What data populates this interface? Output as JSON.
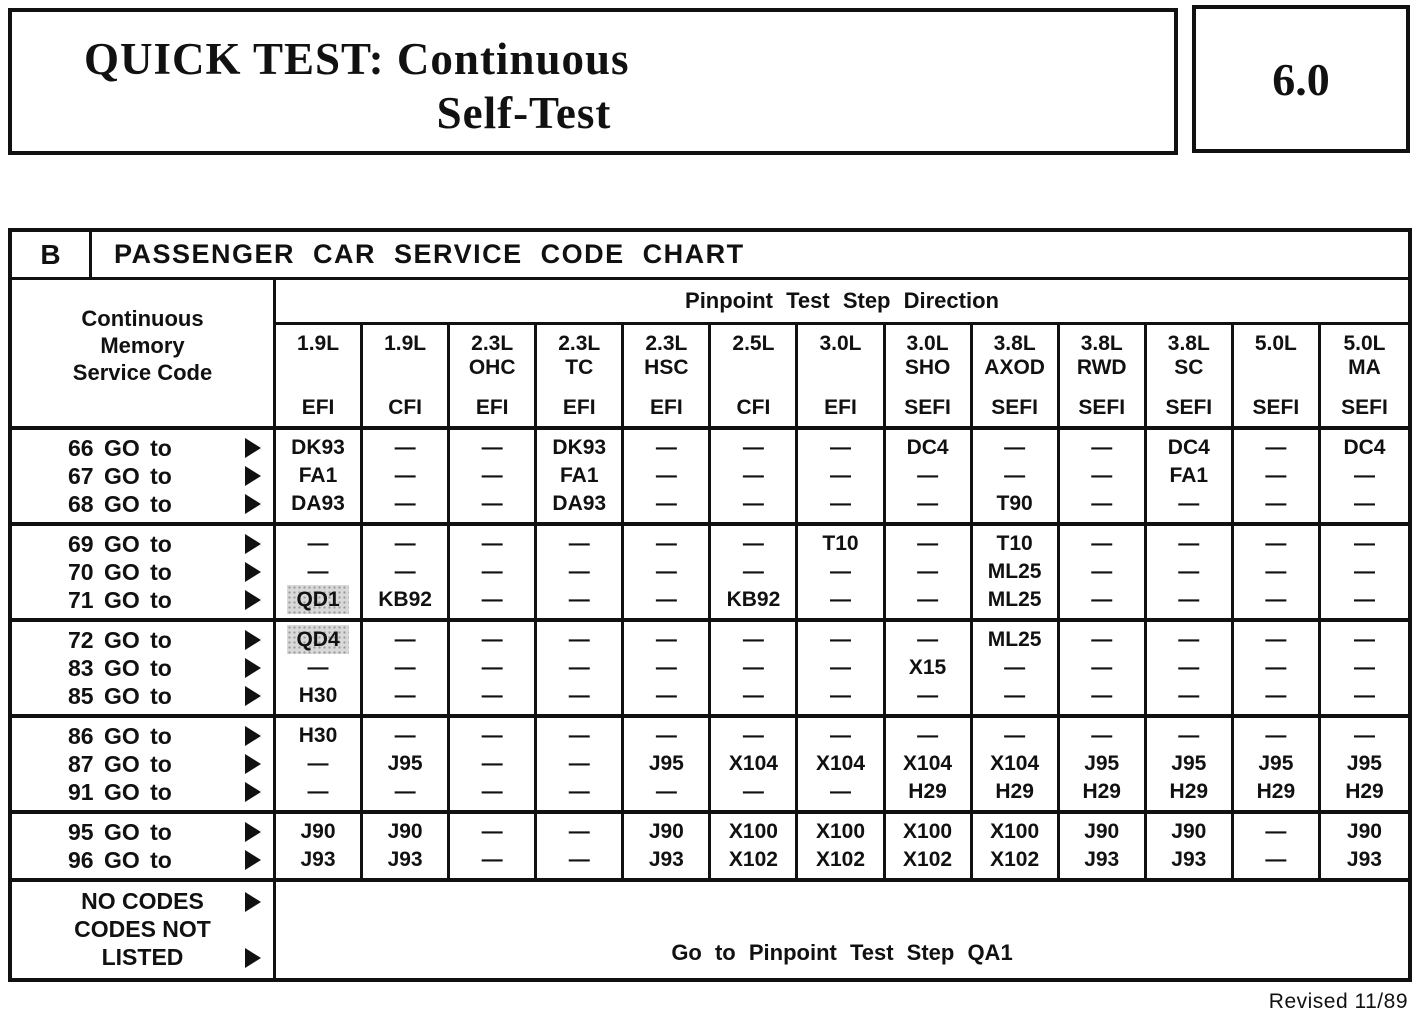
{
  "page": {
    "title_line1": "QUICK TEST: Continuous",
    "title_line2": "Self-Test",
    "section_number": "6.0",
    "revised_note": "Revised 11/89"
  },
  "colors": {
    "ink": "#111111",
    "paper": "#ffffff",
    "highlight": "#d9d9d9"
  },
  "icons": {
    "row_arrow": "right-triangle ▶"
  },
  "table": {
    "section_label": "B",
    "title": "PASSENGER CAR SERVICE CODE CHART",
    "row_header_lines": [
      "Continuous",
      "Memory",
      "Service Code"
    ],
    "column_group_header": "Pinpoint Test Step Direction",
    "columns": [
      {
        "size": "1.9L",
        "variant": "",
        "fuel": "EFI"
      },
      {
        "size": "1.9L",
        "variant": "",
        "fuel": "CFI"
      },
      {
        "size": "2.3L",
        "variant": "OHC",
        "fuel": "EFI"
      },
      {
        "size": "2.3L",
        "variant": "TC",
        "fuel": "EFI"
      },
      {
        "size": "2.3L",
        "variant": "HSC",
        "fuel": "EFI"
      },
      {
        "size": "2.5L",
        "variant": "",
        "fuel": "CFI"
      },
      {
        "size": "3.0L",
        "variant": "",
        "fuel": "EFI"
      },
      {
        "size": "3.0L",
        "variant": "SHO",
        "fuel": "SEFI"
      },
      {
        "size": "3.8L",
        "variant": "AXOD",
        "fuel": "SEFI"
      },
      {
        "size": "3.8L",
        "variant": "RWD",
        "fuel": "SEFI"
      },
      {
        "size": "3.8L",
        "variant": "SC",
        "fuel": "SEFI"
      },
      {
        "size": "5.0L",
        "variant": "",
        "fuel": "SEFI"
      },
      {
        "size": "5.0L",
        "variant": "MA",
        "fuel": "SEFI"
      }
    ],
    "row_groups": [
      {
        "rows": [
          {
            "code": "66 GO to",
            "values": [
              "DK93",
              "—",
              "—",
              "DK93",
              "—",
              "—",
              "—",
              "DC4",
              "—",
              "—",
              "DC4",
              "—",
              "DC4"
            ]
          },
          {
            "code": "67 GO to",
            "values": [
              "FA1",
              "—",
              "—",
              "FA1",
              "—",
              "—",
              "—",
              "—",
              "—",
              "—",
              "FA1",
              "—",
              "—"
            ]
          },
          {
            "code": "68 GO to",
            "values": [
              "DA93",
              "—",
              "—",
              "DA93",
              "—",
              "—",
              "—",
              "—",
              "T90",
              "—",
              "—",
              "—",
              "—"
            ]
          }
        ]
      },
      {
        "rows": [
          {
            "code": "69 GO to",
            "values": [
              "—",
              "—",
              "—",
              "—",
              "—",
              "—",
              "T10",
              "—",
              "T10",
              "—",
              "—",
              "—",
              "—"
            ]
          },
          {
            "code": "70 GO to",
            "values": [
              "—",
              "—",
              "—",
              "—",
              "—",
              "—",
              "—",
              "—",
              "ML25",
              "—",
              "—",
              "—",
              "—"
            ]
          },
          {
            "code": "71 GO to",
            "values": [
              "QD1",
              "KB92",
              "—",
              "—",
              "—",
              "KB92",
              "—",
              "—",
              "ML25",
              "—",
              "—",
              "—",
              "—"
            ],
            "highlight_cols": [
              0
            ]
          }
        ]
      },
      {
        "rows": [
          {
            "code": "72 GO to",
            "values": [
              "QD4",
              "—",
              "—",
              "—",
              "—",
              "—",
              "—",
              "—",
              "ML25",
              "—",
              "—",
              "—",
              "—"
            ],
            "highlight_cols": [
              0
            ]
          },
          {
            "code": "83 GO to",
            "values": [
              "—",
              "—",
              "—",
              "—",
              "—",
              "—",
              "—",
              "X15",
              "—",
              "—",
              "—",
              "—",
              "—"
            ]
          },
          {
            "code": "85 GO to",
            "values": [
              "H30",
              "—",
              "—",
              "—",
              "—",
              "—",
              "—",
              "—",
              "—",
              "—",
              "—",
              "—",
              "—"
            ]
          }
        ]
      },
      {
        "rows": [
          {
            "code": "86 GO to",
            "values": [
              "H30",
              "—",
              "—",
              "—",
              "—",
              "—",
              "—",
              "—",
              "—",
              "—",
              "—",
              "—",
              "—"
            ]
          },
          {
            "code": "87 GO to",
            "values": [
              "—",
              "J95",
              "—",
              "—",
              "J95",
              "X104",
              "X104",
              "X104",
              "X104",
              "J95",
              "J95",
              "J95",
              "J95"
            ]
          },
          {
            "code": "91 GO to",
            "values": [
              "—",
              "—",
              "—",
              "—",
              "—",
              "—",
              "—",
              "H29",
              "H29",
              "H29",
              "H29",
              "H29",
              "H29"
            ]
          }
        ]
      },
      {
        "rows": [
          {
            "code": "95 GO to",
            "values": [
              "J90",
              "J90",
              "—",
              "—",
              "J90",
              "X100",
              "X100",
              "X100",
              "X100",
              "J90",
              "J90",
              "—",
              "J90"
            ]
          },
          {
            "code": "96 GO to",
            "values": [
              "J93",
              "J93",
              "—",
              "—",
              "J93",
              "X102",
              "X102",
              "X102",
              "X102",
              "J93",
              "J93",
              "—",
              "J93"
            ]
          }
        ]
      }
    ],
    "footer_row": {
      "label_lines": [
        "NO CODES",
        "CODES NOT",
        "LISTED"
      ],
      "action": "Go to Pinpoint Test Step QA1"
    }
  }
}
